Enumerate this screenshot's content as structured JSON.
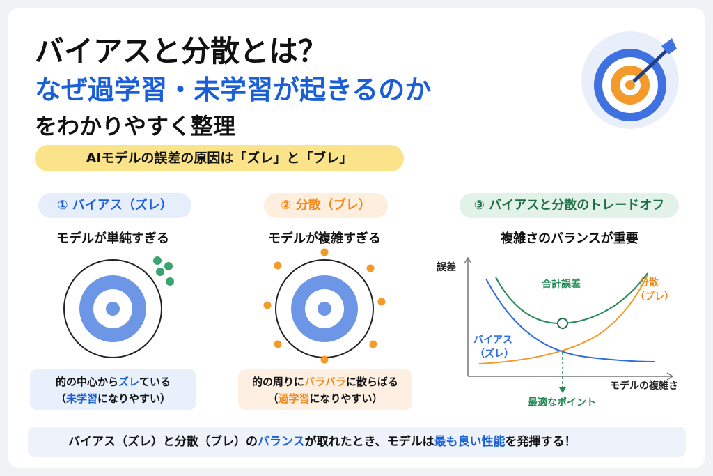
{
  "header": {
    "title_line1": "バイアスと分散とは？",
    "title_line2": "なぜ過学習・未学習が起きるのか",
    "title_line3": "をわかりやすく整理"
  },
  "banner": "AIモデルの誤差の原因は「ズレ」と「ブレ」",
  "panels": [
    {
      "heading": "① バイアス（ズレ）",
      "subtitle": "モデルが単純すぎる",
      "caption": [
        [
          {
            "text": "的の中心から"
          },
          {
            "text": "ズレ",
            "accent": true
          },
          {
            "text": "ている"
          }
        ],
        [
          {
            "text": "（"
          },
          {
            "text": "未学習",
            "accent": true
          },
          {
            "text": "になりやすい）"
          }
        ]
      ]
    },
    {
      "heading": "② 分散（ブレ）",
      "subtitle": "モデルが複雑すぎる",
      "caption": [
        [
          {
            "text": "的の周りに"
          },
          {
            "text": "バラバラ",
            "accent": true
          },
          {
            "text": "に散らばる"
          }
        ],
        [
          {
            "text": "（"
          },
          {
            "text": "過学習",
            "accent": true
          },
          {
            "text": "になりやすい）"
          }
        ]
      ]
    },
    {
      "heading": "③ バイアスと分散のトレードオフ",
      "subtitle": "複雑さのバランスが重要",
      "chart": {
        "y_label": "誤差",
        "x_label": "モデルの複雑さ",
        "total_label": "合計誤差",
        "variance_label": [
          "分散",
          "（ブレ）"
        ],
        "bias_label": [
          "バイアス",
          "（ズレ）"
        ],
        "optimum_label": "最適なポイント"
      }
    }
  ],
  "footer": [
    {
      "text": "バイアス（ズレ）と分散（ブレ）の"
    },
    {
      "text": "バランス",
      "accent": true
    },
    {
      "text": "が取れたとき、モデルは"
    },
    {
      "text": "最も良い性能",
      "accent": true
    },
    {
      "text": "を発揮する！"
    }
  ]
}
